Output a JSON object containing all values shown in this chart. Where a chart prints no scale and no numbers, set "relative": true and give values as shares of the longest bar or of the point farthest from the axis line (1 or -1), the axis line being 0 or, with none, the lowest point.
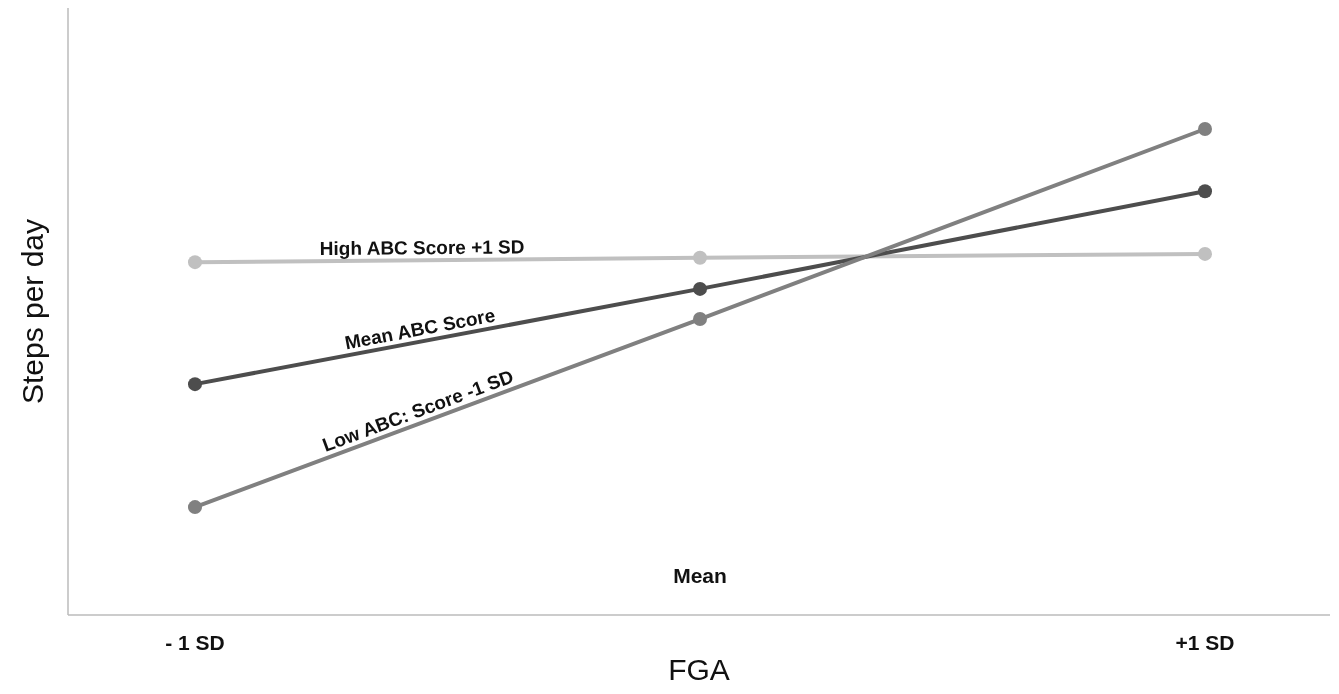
{
  "chart_data": {
    "type": "line",
    "relative": true,
    "xlabel": "FGA",
    "ylabel": "Steps per day",
    "categories": [
      "- 1 SD",
      "Mean",
      "+1 SD"
    ],
    "marker": "circle",
    "line_style": "solid",
    "series": [
      {
        "name": "High ABC Score +1 SD",
        "color": "#c0c0c0",
        "values": [
          0.726,
          0.735,
          0.743
        ]
      },
      {
        "name": "Mean ABC Score",
        "color": "#4d4d4d",
        "values": [
          0.475,
          0.671,
          0.872
        ]
      },
      {
        "name": "Low ABC: Score -1 SD",
        "color": "#808080",
        "values": [
          0.222,
          0.609,
          1
        ]
      }
    ]
  }
}
